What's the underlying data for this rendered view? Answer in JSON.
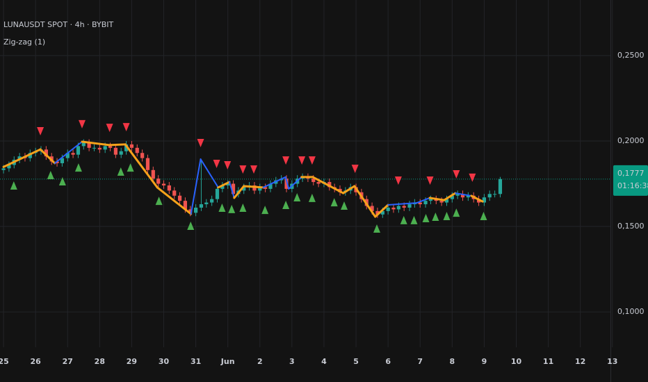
{
  "chart_data": {
    "type": "candlestick",
    "title": "LUNAUSDT SPOT · 4h · BYBIT",
    "indicator": "Zig-zag (1)",
    "x": [
      0,
      0.17,
      0.33,
      0.5,
      0.67,
      0.83,
      1,
      1.17,
      1.33,
      1.5,
      1.67,
      1.83,
      2,
      2.17,
      2.33,
      2.5,
      2.67,
      2.83,
      3,
      3.17,
      3.33,
      3.5,
      3.67,
      3.83,
      4,
      4.17,
      4.33,
      4.5,
      4.67,
      4.83,
      5,
      5.17,
      5.33,
      5.5,
      5.67,
      5.83,
      6,
      6.17,
      6.33,
      6.5,
      6.67,
      6.83,
      7,
      7.17,
      7.33,
      7.5,
      7.67,
      7.83,
      8,
      8.17,
      8.33,
      8.5,
      8.67,
      8.83,
      9,
      9.17,
      9.33,
      9.5,
      9.67,
      9.83,
      10,
      10.17,
      10.33,
      10.5,
      10.67,
      10.83,
      11,
      11.17,
      11.33,
      11.5,
      11.67,
      11.83,
      12,
      12.17,
      12.33,
      12.5,
      12.67,
      12.83,
      13,
      13.17,
      13.33,
      13.5,
      13.67,
      13.83,
      14,
      14.17,
      14.33,
      14.5,
      14.67,
      14.83,
      15,
      15.17,
      15.33,
      15.5
    ],
    "open": [
      0.183,
      0.184,
      0.186,
      0.189,
      0.191,
      0.19,
      0.193,
      0.194,
      0.195,
      0.191,
      0.188,
      0.187,
      0.19,
      0.193,
      0.192,
      0.197,
      0.199,
      0.196,
      0.196,
      0.195,
      0.197,
      0.196,
      0.192,
      0.194,
      0.198,
      0.196,
      0.193,
      0.19,
      0.183,
      0.178,
      0.175,
      0.174,
      0.171,
      0.168,
      0.165,
      0.16,
      0.158,
      0.161,
      0.163,
      0.164,
      0.166,
      0.172,
      0.174,
      0.175,
      0.169,
      0.171,
      0.173,
      0.174,
      0.171,
      0.173,
      0.172,
      0.175,
      0.177,
      0.178,
      0.172,
      0.175,
      0.178,
      0.179,
      0.178,
      0.176,
      0.175,
      0.176,
      0.173,
      0.172,
      0.17,
      0.171,
      0.173,
      0.17,
      0.166,
      0.162,
      0.159,
      0.157,
      0.159,
      0.161,
      0.16,
      0.162,
      0.161,
      0.163,
      0.164,
      0.163,
      0.165,
      0.166,
      0.165,
      0.164,
      0.166,
      0.168,
      0.169,
      0.167,
      0.168,
      0.166,
      0.164,
      0.167,
      0.169,
      0.169
    ],
    "high": [
      0.186,
      0.188,
      0.191,
      0.193,
      0.193,
      0.195,
      0.196,
      0.197,
      0.197,
      0.193,
      0.19,
      0.192,
      0.195,
      0.195,
      0.199,
      0.201,
      0.201,
      0.198,
      0.198,
      0.199,
      0.199,
      0.198,
      0.196,
      0.2,
      0.2,
      0.198,
      0.195,
      0.192,
      0.185,
      0.18,
      0.177,
      0.176,
      0.173,
      0.17,
      0.167,
      0.162,
      0.163,
      0.189,
      0.166,
      0.168,
      0.174,
      0.176,
      0.177,
      0.177,
      0.173,
      0.175,
      0.176,
      0.176,
      0.175,
      0.175,
      0.177,
      0.179,
      0.18,
      0.18,
      0.177,
      0.18,
      0.181,
      0.181,
      0.18,
      0.178,
      0.178,
      0.178,
      0.175,
      0.174,
      0.173,
      0.175,
      0.175,
      0.172,
      0.168,
      0.164,
      0.161,
      0.161,
      0.163,
      0.163,
      0.164,
      0.164,
      0.165,
      0.166,
      0.166,
      0.167,
      0.168,
      0.168,
      0.167,
      0.168,
      0.17,
      0.171,
      0.171,
      0.17,
      0.17,
      0.168,
      0.169,
      0.171,
      0.171,
      0.179
    ],
    "low": [
      0.181,
      0.182,
      0.184,
      0.187,
      0.188,
      0.188,
      0.191,
      0.192,
      0.189,
      0.186,
      0.185,
      0.185,
      0.188,
      0.19,
      0.19,
      0.195,
      0.194,
      0.194,
      0.193,
      0.193,
      0.194,
      0.19,
      0.19,
      0.192,
      0.194,
      0.191,
      0.188,
      0.181,
      0.176,
      0.173,
      0.172,
      0.169,
      0.166,
      0.163,
      0.158,
      0.156,
      0.156,
      0.159,
      0.161,
      0.162,
      0.164,
      0.17,
      0.172,
      0.167,
      0.167,
      0.169,
      0.171,
      0.169,
      0.169,
      0.17,
      0.17,
      0.173,
      0.175,
      0.17,
      0.17,
      0.173,
      0.176,
      0.176,
      0.174,
      0.173,
      0.173,
      0.171,
      0.17,
      0.168,
      0.168,
      0.169,
      0.168,
      0.164,
      0.16,
      0.157,
      0.155,
      0.155,
      0.157,
      0.158,
      0.158,
      0.159,
      0.159,
      0.161,
      0.161,
      0.161,
      0.163,
      0.163,
      0.162,
      0.162,
      0.164,
      0.166,
      0.165,
      0.165,
      0.164,
      0.162,
      0.162,
      0.165,
      0.167,
      0.167
    ],
    "close": [
      0.184,
      0.186,
      0.189,
      0.191,
      0.19,
      0.193,
      0.194,
      0.195,
      0.191,
      0.188,
      0.187,
      0.19,
      0.193,
      0.192,
      0.197,
      0.199,
      0.196,
      0.196,
      0.195,
      0.197,
      0.196,
      0.192,
      0.194,
      0.198,
      0.196,
      0.193,
      0.19,
      0.183,
      0.178,
      0.175,
      0.174,
      0.171,
      0.168,
      0.165,
      0.16,
      0.158,
      0.161,
      0.163,
      0.164,
      0.166,
      0.172,
      0.174,
      0.175,
      0.169,
      0.171,
      0.173,
      0.174,
      0.171,
      0.173,
      0.172,
      0.175,
      0.177,
      0.178,
      0.172,
      0.175,
      0.178,
      0.179,
      0.178,
      0.176,
      0.175,
      0.176,
      0.173,
      0.172,
      0.17,
      0.171,
      0.173,
      0.17,
      0.166,
      0.162,
      0.159,
      0.157,
      0.159,
      0.161,
      0.16,
      0.162,
      0.161,
      0.163,
      0.164,
      0.163,
      0.165,
      0.166,
      0.165,
      0.164,
      0.166,
      0.168,
      0.169,
      0.167,
      0.168,
      0.166,
      0.164,
      0.167,
      0.169,
      0.169,
      0.1777
    ],
    "up_color": "#26a69a",
    "down_color": "#ef5350",
    "xlim": [
      -0.11,
      18.94
    ],
    "xticks": [
      {
        "value": 0,
        "label": "25"
      },
      {
        "value": 1,
        "label": "26"
      },
      {
        "value": 2,
        "label": "27"
      },
      {
        "value": 3,
        "label": "28"
      },
      {
        "value": 4,
        "label": "29"
      },
      {
        "value": 5,
        "label": "30"
      },
      {
        "value": 6,
        "label": "31"
      },
      {
        "value": 7,
        "label": "Jun"
      },
      {
        "value": 8,
        "label": "2"
      },
      {
        "value": 9,
        "label": "3"
      },
      {
        "value": 10,
        "label": "4"
      },
      {
        "value": 11,
        "label": "5"
      },
      {
        "value": 12,
        "label": "6"
      },
      {
        "value": 13,
        "label": "7"
      },
      {
        "value": 14,
        "label": "8"
      },
      {
        "value": 15,
        "label": "9"
      },
      {
        "value": 16,
        "label": "10"
      },
      {
        "value": 17,
        "label": "11"
      },
      {
        "value": 18,
        "label": "12"
      },
      {
        "value": 19,
        "label": "13"
      }
    ],
    "ylim": [
      0.0793,
      0.2825
    ],
    "yticks": [
      {
        "value": 0.25,
        "label": "0,2500"
      },
      {
        "value": 0.2,
        "label": "0,2000"
      },
      {
        "value": 0.15,
        "label": "0,1500"
      },
      {
        "value": 0.1,
        "label": "0,1000"
      }
    ],
    "grid": true,
    "zigzag": {
      "x": [
        0,
        1.15,
        1.6,
        2.45,
        3.3,
        3.8,
        4.8,
        5.85,
        6.15,
        6.7,
        7.05,
        7.2,
        7.5,
        8.1,
        8.8,
        8.9,
        9.3,
        9.65,
        10.6,
        10.95,
        11.6,
        12.0,
        12.9,
        13.3,
        13.75,
        14.1,
        14.6,
        14.95
      ],
      "values": [
        0.1848,
        0.1951,
        0.187,
        0.1996,
        0.1976,
        0.198,
        0.1728,
        0.1573,
        0.1894,
        0.1728,
        0.176,
        0.1667,
        0.1736,
        0.1728,
        0.1789,
        0.172,
        0.1789,
        0.1789,
        0.1695,
        0.1736,
        0.1557,
        0.1626,
        0.1638,
        0.1667,
        0.1654,
        0.1695,
        0.1679,
        0.1646
      ],
      "colors": [
        "#f7a21b",
        "#f7a21b",
        "#2962ff",
        "#f7a21b",
        "#f7a21b",
        "#f7a21b",
        "#f7a21b",
        "#2962ff",
        "#2962ff",
        "#f7a21b",
        "#2962ff",
        "#f7a21b",
        "#f7a21b",
        "#2962ff",
        "#2962ff",
        "#2962ff",
        "#f7a21b",
        "#f7a21b",
        "#f7a21b",
        "#f7a21b",
        "#f7a21b",
        "#2962ff",
        "#2962ff",
        "#f7a21b",
        "#f7a21b",
        "#2962ff",
        "#f7a21b"
      ]
    },
    "markers_high": {
      "color": "#f23645",
      "x": [
        1.15,
        2.45,
        3.31,
        3.83,
        6.15,
        6.65,
        6.99,
        7.47,
        7.81,
        8.81,
        9.31,
        9.63,
        10.97,
        12.32,
        13.31,
        14.13,
        14.63
      ],
      "values": [
        0.2061,
        0.2102,
        0.2081,
        0.2085,
        0.1992,
        0.187,
        0.1862,
        0.1837,
        0.1837,
        0.189,
        0.189,
        0.189,
        0.1841,
        0.1772,
        0.1772,
        0.1809,
        0.1789
      ]
    },
    "markers_low": {
      "color": "#4caf50",
      "x": [
        0.32,
        1.47,
        1.84,
        2.34,
        3.66,
        3.96,
        4.85,
        5.84,
        6.82,
        7.12,
        7.47,
        8.16,
        8.81,
        9.16,
        9.63,
        10.32,
        10.63,
        11.65,
        12.49,
        12.81,
        13.18,
        13.48,
        13.83,
        14.13,
        14.98
      ],
      "values": [
        0.1736,
        0.1797,
        0.176,
        0.1841,
        0.1817,
        0.1841,
        0.1646,
        0.15,
        0.1606,
        0.1598,
        0.1606,
        0.1593,
        0.1622,
        0.1667,
        0.1663,
        0.1638,
        0.1618,
        0.1484,
        0.1533,
        0.1533,
        0.1545,
        0.1553,
        0.1557,
        0.1577,
        0.1557
      ]
    },
    "last_price": {
      "value": 0.1777,
      "label": "0,1777",
      "countdown": "01:16:38",
      "color": "#089981"
    }
  }
}
